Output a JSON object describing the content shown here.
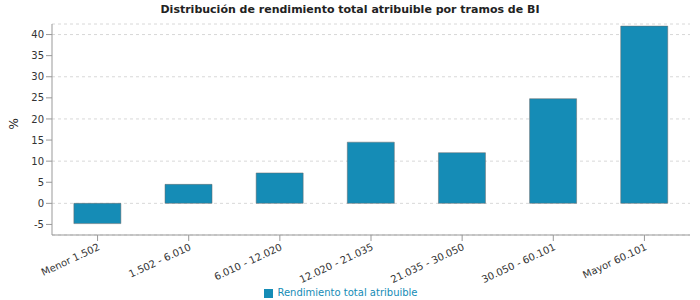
{
  "chart_data": {
    "type": "bar",
    "title": "Distribución de rendimiento total atribuible por tramos de BI",
    "y_label": "%",
    "categories": [
      "Menor 1.502",
      "1.502 - 6.010",
      "6.010 - 12.020",
      "12.020 - 21.035",
      "21.035 - 30.050",
      "30.050 - 60.101",
      "Mayor 60.101"
    ],
    "series": [
      {
        "name": "Rendimiento total atribuible",
        "color": "#158cb6",
        "values": [
          -4.8,
          4.5,
          7.2,
          14.5,
          12,
          24.8,
          42
        ]
      }
    ],
    "ylim": [
      -7.5,
      42.5
    ],
    "yticks": [
      -5,
      0,
      5,
      10,
      15,
      20,
      25,
      30,
      35,
      40
    ],
    "grid": true,
    "legend": "bottom"
  }
}
